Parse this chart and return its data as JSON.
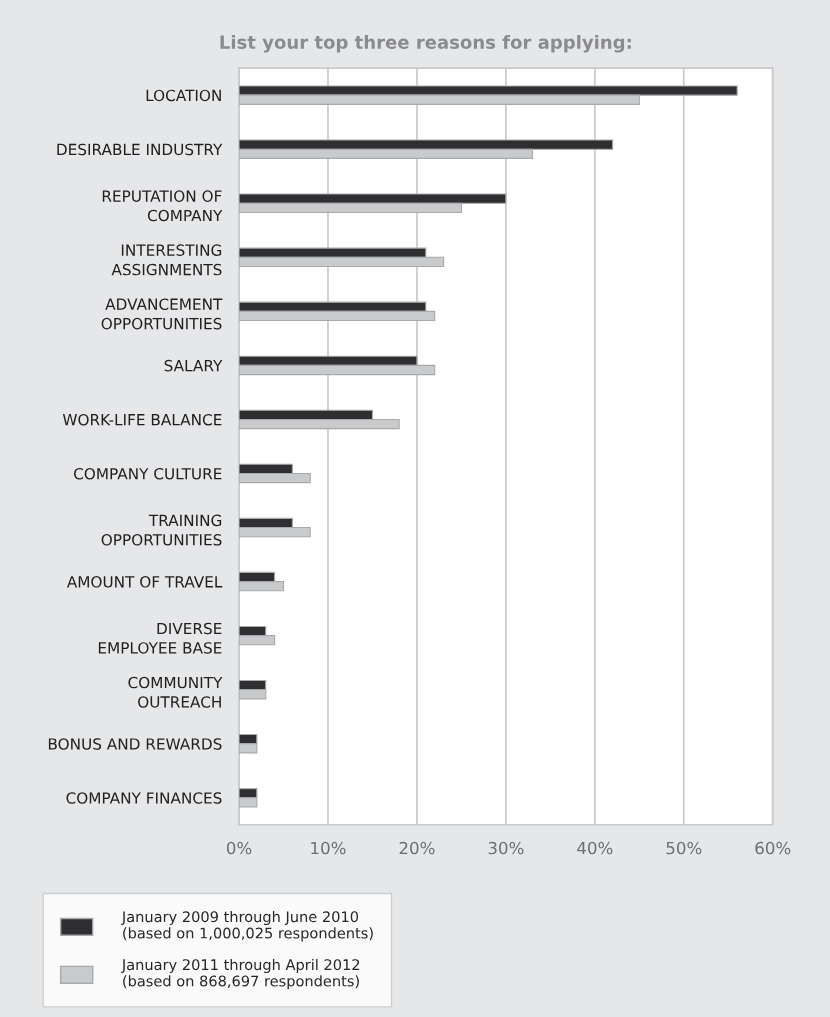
{
  "chart_data": {
    "type": "bar",
    "orientation": "horizontal",
    "title": "List your top three reasons for applying:",
    "categories": [
      "LOCATION",
      "DESIRABLE INDUSTRY",
      "REPUTATION OF\nCOMPANY",
      "INTERESTING\nASSIGNMENTS",
      "ADVANCEMENT\nOPPORTUNITIES",
      "SALARY",
      "WORK-LIFE BALANCE",
      "COMPANY CULTURE",
      "TRAINING\nOPPORTUNITIES",
      "AMOUNT OF TRAVEL",
      "DIVERSE\nEMPLOYEE BASE",
      "COMMUNITY\nOUTREACH",
      "BONUS AND REWARDS",
      "COMPANY FINANCES"
    ],
    "series": [
      {
        "name": "January 2009 through June 2010\n(based on 1,000,025 respondents)",
        "color": "#2f2e31",
        "values": [
          56,
          42,
          30,
          21,
          21,
          20,
          15,
          6,
          6,
          4,
          3,
          3,
          2,
          2
        ]
      },
      {
        "name": "January 2011 through April 2012\n(based on 868,697 respondents)",
        "color": "#c9cacc",
        "values": [
          45,
          33,
          25,
          23,
          22,
          22,
          18,
          8,
          8,
          5,
          4,
          3,
          2,
          2
        ]
      }
    ],
    "xlim": [
      0,
      60
    ],
    "xticks": [
      {
        "value": 0,
        "label": "0%"
      },
      {
        "value": 10,
        "label": "10%"
      },
      {
        "value": 20,
        "label": "20%"
      },
      {
        "value": 30,
        "label": "30%"
      },
      {
        "value": 40,
        "label": "40%"
      },
      {
        "value": 50,
        "label": "50%"
      },
      {
        "value": 60,
        "label": "60%"
      }
    ],
    "grid": "x",
    "legend": "bottom"
  }
}
